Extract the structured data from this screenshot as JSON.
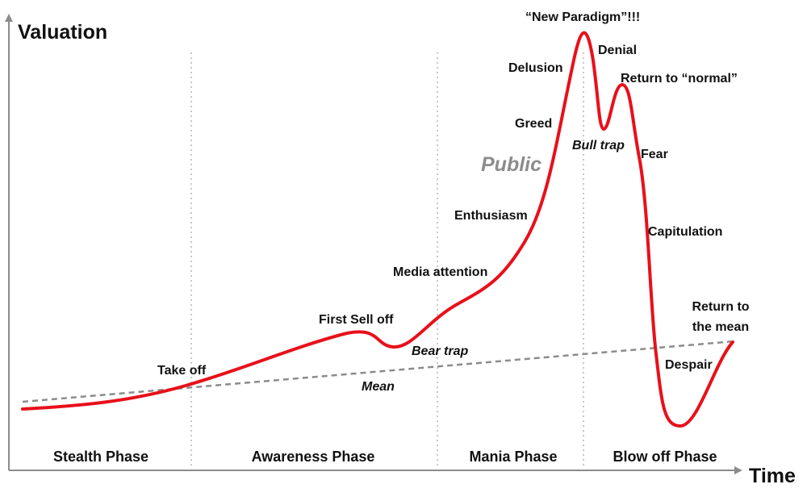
{
  "axes": {
    "y_label": "Valuation",
    "x_label": "Time"
  },
  "phases": [
    {
      "label": "Stealth Phase"
    },
    {
      "label": "Awareness Phase"
    },
    {
      "label": "Mania Phase"
    },
    {
      "label": "Blow off Phase"
    }
  ],
  "mean_label": "Mean",
  "crowd_label": "Public",
  "annotations": {
    "take_off": "Take off",
    "first_sell_off": "First Sell off",
    "bear_trap": "Bear trap",
    "media_attention": "Media attention",
    "enthusiasm": "Enthusiasm",
    "greed": "Greed",
    "delusion": "Delusion",
    "new_paradigm": "“New Paradigm”!!!",
    "denial": "Denial",
    "bull_trap": "Bull trap",
    "return_to_normal": "Return to “normal”",
    "fear": "Fear",
    "capitulation": "Capitulation",
    "despair": "Despair",
    "return_to_mean_1": "Return to",
    "return_to_mean_2": "the mean"
  },
  "colors": {
    "curve": "#e8101a",
    "mean_line": "#8c8c8c",
    "axis": "#8c8c8c",
    "phase_divider": "#c8c8c8",
    "public_text": "#8c8c8c"
  }
}
